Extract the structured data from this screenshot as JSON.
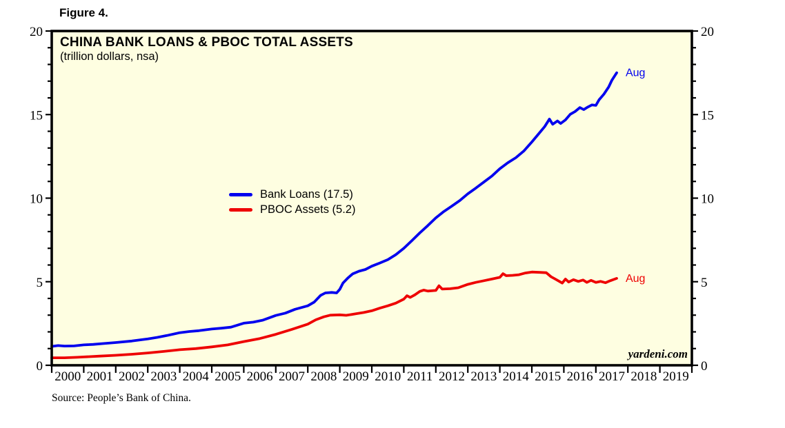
{
  "figure": {
    "label": "Figure 4.",
    "source": "Source: People’s Bank of China.",
    "watermark": "yardeni.com"
  },
  "chart_data": {
    "type": "line",
    "title": "CHINA BANK LOANS & PBOC TOTAL ASSETS",
    "subtitle": "(trillion dollars, nsa)",
    "xlim": [
      2000,
      2020
    ],
    "ylim": [
      0,
      20
    ],
    "y_major_ticks": [
      0,
      5,
      10,
      15,
      20
    ],
    "y_minor_step": 1,
    "x_tick_step_years": 1,
    "grid": false,
    "legend_position": "inside-center-left",
    "plot_bg_color": "#FEFEE1",
    "frame_color": "#000000",
    "series": [
      {
        "name": "Bank Loans",
        "legend_label": "Bank Loans (17.5)",
        "last_value": 17.5,
        "end_label": "Aug",
        "color": "#0000EE",
        "points": [
          [
            2000.0,
            1.13
          ],
          [
            2000.2,
            1.18
          ],
          [
            2000.4,
            1.15
          ],
          [
            2000.7,
            1.16
          ],
          [
            2001.0,
            1.22
          ],
          [
            2001.3,
            1.25
          ],
          [
            2001.6,
            1.3
          ],
          [
            2002.0,
            1.36
          ],
          [
            2002.5,
            1.45
          ],
          [
            2003.0,
            1.58
          ],
          [
            2003.3,
            1.67
          ],
          [
            2003.6,
            1.78
          ],
          [
            2004.0,
            1.95
          ],
          [
            2004.3,
            2.02
          ],
          [
            2004.6,
            2.07
          ],
          [
            2005.0,
            2.17
          ],
          [
            2005.3,
            2.22
          ],
          [
            2005.6,
            2.28
          ],
          [
            2005.8,
            2.4
          ],
          [
            2006.0,
            2.52
          ],
          [
            2006.3,
            2.58
          ],
          [
            2006.6,
            2.7
          ],
          [
            2007.0,
            2.98
          ],
          [
            2007.3,
            3.12
          ],
          [
            2007.6,
            3.35
          ],
          [
            2008.0,
            3.56
          ],
          [
            2008.2,
            3.78
          ],
          [
            2008.4,
            4.18
          ],
          [
            2008.55,
            4.33
          ],
          [
            2008.75,
            4.36
          ],
          [
            2008.9,
            4.33
          ],
          [
            2009.0,
            4.55
          ],
          [
            2009.1,
            4.92
          ],
          [
            2009.25,
            5.22
          ],
          [
            2009.4,
            5.47
          ],
          [
            2009.6,
            5.63
          ],
          [
            2009.8,
            5.73
          ],
          [
            2010.0,
            5.93
          ],
          [
            2010.25,
            6.12
          ],
          [
            2010.5,
            6.32
          ],
          [
            2010.75,
            6.62
          ],
          [
            2011.0,
            7.0
          ],
          [
            2011.25,
            7.45
          ],
          [
            2011.5,
            7.92
          ],
          [
            2011.75,
            8.36
          ],
          [
            2012.0,
            8.82
          ],
          [
            2012.25,
            9.2
          ],
          [
            2012.5,
            9.52
          ],
          [
            2012.75,
            9.86
          ],
          [
            2013.0,
            10.26
          ],
          [
            2013.25,
            10.6
          ],
          [
            2013.5,
            10.96
          ],
          [
            2013.75,
            11.32
          ],
          [
            2014.0,
            11.76
          ],
          [
            2014.25,
            12.12
          ],
          [
            2014.5,
            12.42
          ],
          [
            2014.75,
            12.82
          ],
          [
            2015.0,
            13.36
          ],
          [
            2015.2,
            13.82
          ],
          [
            2015.4,
            14.28
          ],
          [
            2015.55,
            14.73
          ],
          [
            2015.65,
            14.42
          ],
          [
            2015.8,
            14.62
          ],
          [
            2015.9,
            14.47
          ],
          [
            2016.05,
            14.68
          ],
          [
            2016.2,
            15.02
          ],
          [
            2016.35,
            15.18
          ],
          [
            2016.5,
            15.42
          ],
          [
            2016.62,
            15.3
          ],
          [
            2016.75,
            15.45
          ],
          [
            2016.88,
            15.58
          ],
          [
            2017.0,
            15.55
          ],
          [
            2017.1,
            15.88
          ],
          [
            2017.25,
            16.22
          ],
          [
            2017.4,
            16.65
          ],
          [
            2017.5,
            17.05
          ],
          [
            2017.65,
            17.5
          ]
        ]
      },
      {
        "name": "PBOC Assets",
        "legend_label": "PBOC Assets (5.2)",
        "last_value": 5.2,
        "end_label": "Aug",
        "color": "#EE0000",
        "points": [
          [
            2000.0,
            0.45
          ],
          [
            2000.4,
            0.45
          ],
          [
            2000.8,
            0.48
          ],
          [
            2001.0,
            0.5
          ],
          [
            2001.5,
            0.55
          ],
          [
            2002.0,
            0.6
          ],
          [
            2002.5,
            0.66
          ],
          [
            2003.0,
            0.74
          ],
          [
            2003.5,
            0.83
          ],
          [
            2004.0,
            0.93
          ],
          [
            2004.5,
            1.0
          ],
          [
            2005.0,
            1.1
          ],
          [
            2005.5,
            1.22
          ],
          [
            2006.0,
            1.42
          ],
          [
            2006.5,
            1.6
          ],
          [
            2007.0,
            1.85
          ],
          [
            2007.5,
            2.15
          ],
          [
            2008.0,
            2.46
          ],
          [
            2008.25,
            2.72
          ],
          [
            2008.5,
            2.9
          ],
          [
            2008.7,
            3.0
          ],
          [
            2009.0,
            3.02
          ],
          [
            2009.2,
            2.99
          ],
          [
            2009.5,
            3.08
          ],
          [
            2009.75,
            3.16
          ],
          [
            2010.0,
            3.26
          ],
          [
            2010.25,
            3.42
          ],
          [
            2010.5,
            3.56
          ],
          [
            2010.75,
            3.72
          ],
          [
            2011.0,
            3.96
          ],
          [
            2011.1,
            4.16
          ],
          [
            2011.2,
            4.06
          ],
          [
            2011.35,
            4.22
          ],
          [
            2011.5,
            4.42
          ],
          [
            2011.62,
            4.5
          ],
          [
            2011.75,
            4.44
          ],
          [
            2012.0,
            4.48
          ],
          [
            2012.1,
            4.76
          ],
          [
            2012.2,
            4.56
          ],
          [
            2012.45,
            4.58
          ],
          [
            2012.7,
            4.64
          ],
          [
            2013.0,
            4.84
          ],
          [
            2013.25,
            4.96
          ],
          [
            2013.5,
            5.06
          ],
          [
            2013.75,
            5.16
          ],
          [
            2014.0,
            5.26
          ],
          [
            2014.1,
            5.48
          ],
          [
            2014.2,
            5.36
          ],
          [
            2014.4,
            5.38
          ],
          [
            2014.6,
            5.42
          ],
          [
            2014.8,
            5.52
          ],
          [
            2015.0,
            5.58
          ],
          [
            2015.25,
            5.56
          ],
          [
            2015.45,
            5.54
          ],
          [
            2015.6,
            5.3
          ],
          [
            2015.75,
            5.14
          ],
          [
            2015.95,
            4.92
          ],
          [
            2016.05,
            5.16
          ],
          [
            2016.15,
            4.98
          ],
          [
            2016.3,
            5.12
          ],
          [
            2016.45,
            5.02
          ],
          [
            2016.6,
            5.1
          ],
          [
            2016.72,
            4.96
          ],
          [
            2016.85,
            5.08
          ],
          [
            2017.0,
            4.96
          ],
          [
            2017.15,
            5.02
          ],
          [
            2017.3,
            4.94
          ],
          [
            2017.45,
            5.06
          ],
          [
            2017.65,
            5.2
          ]
        ]
      }
    ]
  }
}
